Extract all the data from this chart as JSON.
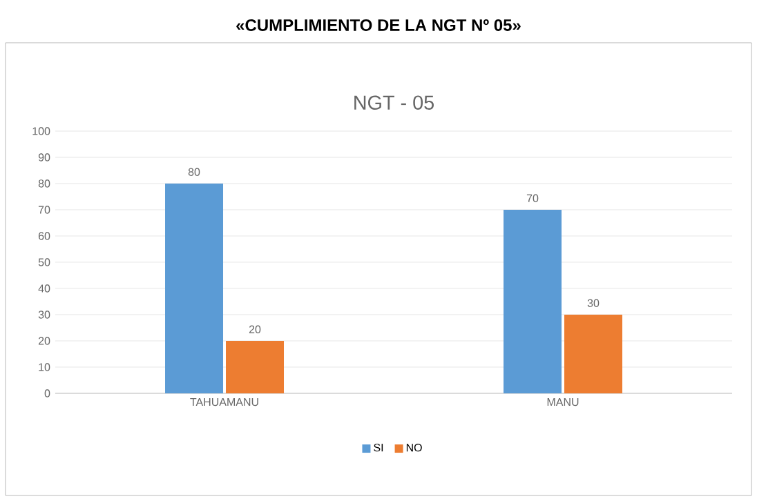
{
  "chart_data": {
    "type": "bar",
    "title": "«CUMPLIMIENTO DE LA NGT Nº 05»",
    "subtitle": "NGT - 05",
    "categories": [
      "TAHUAMANU",
      "MANU"
    ],
    "series": [
      {
        "name": "SI",
        "color": "#5b9bd5",
        "values": [
          80,
          70
        ]
      },
      {
        "name": "NO",
        "color": "#ed7d31",
        "values": [
          20,
          30
        ]
      }
    ],
    "ylim": [
      0,
      100
    ],
    "yticks": [
      0,
      10,
      20,
      30,
      40,
      50,
      60,
      70,
      80,
      90,
      100
    ],
    "grid": "y",
    "legend": "bottom",
    "data_labels": true
  }
}
